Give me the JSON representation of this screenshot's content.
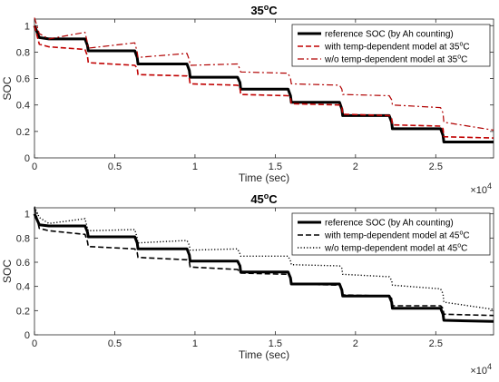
{
  "chart_data": [
    {
      "type": "line",
      "title": "35",
      "title_sup": "o",
      "title_unit": "C",
      "xlabel": "Time (sec)",
      "ylabel": "SOC",
      "x_exponent_label": "×10",
      "x_exponent_value": "4",
      "xlim": [
        0,
        28600
      ],
      "ylim": [
        0,
        1.05
      ],
      "xticks": [
        0,
        5000,
        10000,
        15000,
        20000,
        25000
      ],
      "xtick_labels": [
        "0",
        "0.5",
        "1",
        "1.5",
        "2",
        "2.5"
      ],
      "yticks": [
        0,
        0.2,
        0.4,
        0.6,
        0.8,
        1.0
      ],
      "ytick_labels": [
        "0",
        "0.2",
        "0.4",
        "0.6",
        "0.8",
        "1"
      ],
      "legend_position": "top-right",
      "series": [
        {
          "name": "reference SOC (by Ah counting)",
          "name_sup": "",
          "name_tail": "",
          "color": "#000000",
          "style": "solid",
          "x": [
            0,
            300,
            900,
            3150,
            3300,
            3350,
            6250,
            6400,
            6450,
            9500,
            9650,
            9700,
            12650,
            12800,
            12850,
            15800,
            15950,
            16000,
            19000,
            19150,
            19200,
            22100,
            22250,
            22300,
            25300,
            25450,
            25500,
            28600
          ],
          "y": [
            1.0,
            0.91,
            0.9,
            0.9,
            0.85,
            0.81,
            0.81,
            0.76,
            0.71,
            0.71,
            0.66,
            0.61,
            0.61,
            0.57,
            0.52,
            0.52,
            0.47,
            0.42,
            0.42,
            0.37,
            0.32,
            0.32,
            0.27,
            0.22,
            0.22,
            0.17,
            0.12,
            0.12
          ]
        },
        {
          "name": "with temp-dependent model at 35",
          "name_sup": "o",
          "name_tail": "C",
          "color": "#c00000",
          "style": "dashed",
          "x": [
            0,
            300,
            900,
            3150,
            3300,
            3350,
            6250,
            6400,
            6450,
            9500,
            9650,
            9700,
            12650,
            12800,
            12850,
            15800,
            15950,
            16000,
            19000,
            19150,
            19200,
            22100,
            22250,
            22300,
            25300,
            25450,
            25500,
            28600
          ],
          "y": [
            1.0,
            0.86,
            0.84,
            0.82,
            0.77,
            0.72,
            0.7,
            0.68,
            0.63,
            0.62,
            0.6,
            0.56,
            0.55,
            0.53,
            0.48,
            0.47,
            0.45,
            0.41,
            0.4,
            0.38,
            0.33,
            0.32,
            0.3,
            0.25,
            0.24,
            0.22,
            0.16,
            0.15
          ]
        },
        {
          "name": "w/o temp-dependent model at 35",
          "name_sup": "o",
          "name_tail": "C",
          "color": "#b00000",
          "style": "dashdot",
          "x": [
            0,
            300,
            900,
            3150,
            3300,
            3350,
            6250,
            6400,
            6450,
            9500,
            9650,
            9700,
            12650,
            12800,
            12850,
            15800,
            15950,
            16000,
            19000,
            19150,
            19200,
            22100,
            22250,
            22300,
            25300,
            25450,
            25500,
            28600
          ],
          "y": [
            1.06,
            0.94,
            0.9,
            0.95,
            0.87,
            0.83,
            0.87,
            0.8,
            0.76,
            0.79,
            0.74,
            0.7,
            0.71,
            0.67,
            0.65,
            0.64,
            0.6,
            0.56,
            0.55,
            0.52,
            0.48,
            0.47,
            0.44,
            0.4,
            0.38,
            0.34,
            0.27,
            0.21
          ]
        }
      ]
    },
    {
      "type": "line",
      "title": "45",
      "title_sup": "o",
      "title_unit": "C",
      "xlabel": "Time (sec)",
      "ylabel": "SOC",
      "x_exponent_label": "×10",
      "x_exponent_value": "4",
      "xlim": [
        0,
        28600
      ],
      "ylim": [
        0,
        1.05
      ],
      "xticks": [
        0,
        5000,
        10000,
        15000,
        20000,
        25000
      ],
      "xtick_labels": [
        "0",
        "0.5",
        "1",
        "1.5",
        "2",
        "2.5"
      ],
      "yticks": [
        0,
        0.2,
        0.4,
        0.6,
        0.8,
        1.0
      ],
      "ytick_labels": [
        "0",
        "0.2",
        "0.4",
        "0.6",
        "0.8",
        "1"
      ],
      "legend_position": "top-right",
      "series": [
        {
          "name": "reference SOC (by Ah counting)",
          "name_sup": "",
          "name_tail": "",
          "color": "#000000",
          "style": "solid",
          "x": [
            0,
            300,
            900,
            3150,
            3300,
            3350,
            6250,
            6400,
            6450,
            9500,
            9650,
            9700,
            12650,
            12800,
            12850,
            15800,
            15950,
            16000,
            19000,
            19150,
            19200,
            22100,
            22250,
            22300,
            25300,
            25450,
            25500,
            28600
          ],
          "y": [
            1.0,
            0.91,
            0.9,
            0.9,
            0.85,
            0.81,
            0.81,
            0.76,
            0.71,
            0.71,
            0.66,
            0.61,
            0.61,
            0.57,
            0.52,
            0.52,
            0.47,
            0.42,
            0.42,
            0.37,
            0.32,
            0.32,
            0.27,
            0.22,
            0.22,
            0.17,
            0.12,
            0.11
          ]
        },
        {
          "name": "with temp-dependent model at 45",
          "name_sup": "o",
          "name_tail": "C",
          "color": "#000000",
          "style": "dashed",
          "x": [
            0,
            300,
            900,
            3150,
            3300,
            3350,
            6250,
            6400,
            6450,
            9500,
            9650,
            9700,
            12650,
            12800,
            12850,
            15800,
            15950,
            16000,
            19000,
            19150,
            19200,
            22100,
            22250,
            22300,
            25300,
            25450,
            25500,
            28600
          ],
          "y": [
            1.05,
            0.88,
            0.86,
            0.83,
            0.77,
            0.73,
            0.71,
            0.68,
            0.64,
            0.62,
            0.6,
            0.56,
            0.54,
            0.52,
            0.51,
            0.5,
            0.47,
            0.42,
            0.41,
            0.38,
            0.33,
            0.32,
            0.3,
            0.24,
            0.24,
            0.22,
            0.17,
            0.16
          ]
        },
        {
          "name": "w/o temp-dependent model at 45",
          "name_sup": "o",
          "name_tail": "C",
          "color": "#000000",
          "style": "dotted",
          "x": [
            0,
            300,
            900,
            3150,
            3300,
            3350,
            6250,
            6400,
            6450,
            9500,
            9650,
            9700,
            12650,
            12800,
            12850,
            15800,
            15950,
            16000,
            19000,
            19150,
            19200,
            22100,
            22250,
            22300,
            25300,
            25450,
            25500,
            28600
          ],
          "y": [
            1.06,
            0.97,
            0.92,
            0.96,
            0.88,
            0.86,
            0.87,
            0.8,
            0.76,
            0.78,
            0.74,
            0.7,
            0.71,
            0.67,
            0.65,
            0.65,
            0.61,
            0.58,
            0.57,
            0.55,
            0.5,
            0.48,
            0.45,
            0.41,
            0.38,
            0.34,
            0.27,
            0.21
          ]
        }
      ]
    }
  ]
}
